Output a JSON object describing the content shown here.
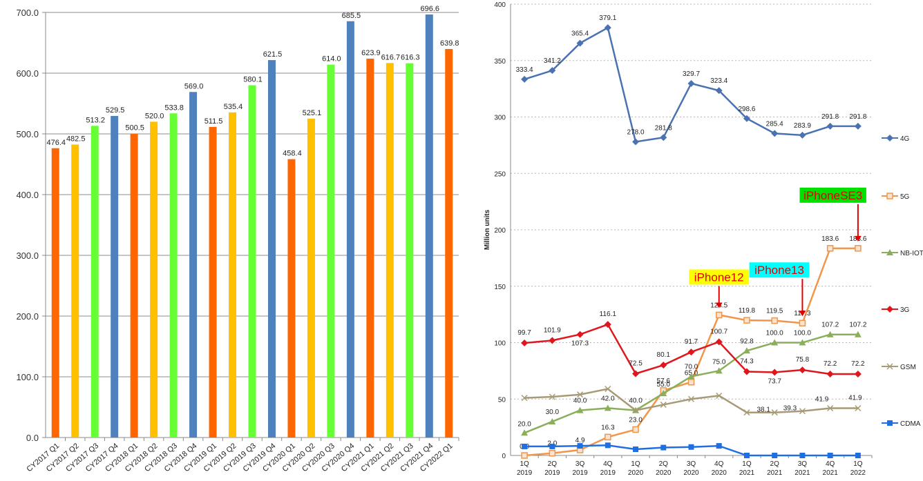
{
  "chart_data": [
    {
      "type": "bar",
      "categories": [
        "CY2017 Q1",
        "CY2017 Q2",
        "CY2017 Q3",
        "CY2017 Q4",
        "CY2018 Q1",
        "CY2018 Q2",
        "CY2018 Q3",
        "CY2018 Q4",
        "CY2019 Q1",
        "CY2019 Q2",
        "CY2019 Q3",
        "CY2019 Q4",
        "CY2020 Q1",
        "CY2020 Q2",
        "CY2020 Q3",
        "CY2020 Q4",
        "CY2021 Q1",
        "CY2021 Q2",
        "CY2021 Q3",
        "CY2021 Q4",
        "CY2022 Q1"
      ],
      "values": [
        476.4,
        482.5,
        513.2,
        529.5,
        500.5,
        520.0,
        533.8,
        569.0,
        511.5,
        535.4,
        580.1,
        621.5,
        458.4,
        525.1,
        614.0,
        685.5,
        623.9,
        616.7,
        616.3,
        696.6,
        639.8
      ],
      "value_labels": [
        "476.4",
        "482.5",
        "513.2",
        "529.5",
        "500.5",
        "520.0",
        "533.8",
        "569.0",
        "511.5",
        "535.4",
        "580.1",
        "621.5",
        "458.4",
        "525.1",
        "614.0",
        "685.5",
        "623.9",
        "616.7",
        "616.3",
        "696.6",
        "639.8"
      ],
      "bar_colors": [
        "#ff6600",
        "#ffc000",
        "#66ff33",
        "#4f81bd",
        "#ff6600",
        "#ffc000",
        "#66ff33",
        "#4f81bd",
        "#ff6600",
        "#ffc000",
        "#66ff33",
        "#4f81bd",
        "#ff6600",
        "#ffc000",
        "#66ff33",
        "#4f81bd",
        "#ff6600",
        "#ffc000",
        "#66ff33",
        "#4f81bd",
        "#ff6600"
      ],
      "ylim": [
        0,
        700
      ],
      "yticks": [
        "0.0",
        "100.0",
        "200.0",
        "300.0",
        "400.0",
        "500.0",
        "600.0",
        "700.0"
      ],
      "grid": true
    },
    {
      "type": "line",
      "x": [
        "1Q 2019",
        "2Q 2019",
        "3Q 2019",
        "4Q 2019",
        "1Q 2020",
        "2Q 2020",
        "3Q 2020",
        "4Q 2020",
        "1Q 2021",
        "2Q 2021",
        "3Q 2021",
        "4Q 2021",
        "1Q 2022"
      ],
      "x_tick_lines": [
        [
          "1Q",
          "2019"
        ],
        [
          "2Q",
          "2019"
        ],
        [
          "3Q",
          "2019"
        ],
        [
          "4Q",
          "2019"
        ],
        [
          "1Q",
          "2020"
        ],
        [
          "2Q",
          "2020"
        ],
        [
          "3Q",
          "2020"
        ],
        [
          "4Q",
          "2020"
        ],
        [
          "1Q",
          "2021"
        ],
        [
          "2Q",
          "2021"
        ],
        [
          "3Q",
          "2021"
        ],
        [
          "4Q",
          "2021"
        ],
        [
          "1Q",
          "2022"
        ]
      ],
      "ylabel": "Million units",
      "ylim": [
        0,
        400
      ],
      "yticks": [
        "0",
        "50",
        "100",
        "150",
        "200",
        "250",
        "300",
        "350",
        "400"
      ],
      "grid": true,
      "legend_position": "right",
      "series": [
        {
          "name": "4G",
          "color": "#4a72b0",
          "marker": "diamond",
          "values": [
            333.4,
            341.2,
            365.4,
            379.1,
            278.0,
            281.8,
            329.7,
            323.4,
            298.6,
            285.4,
            283.9,
            291.8,
            291.8
          ],
          "labels": [
            "333.4",
            "341.2",
            "365.4",
            "379.1",
            "278.0",
            "281.8",
            "329.7",
            "323.4",
            "298.6",
            "285.4",
            "283.9",
            "291.8",
            "291.8"
          ]
        },
        {
          "name": "5G",
          "color": "#f0964a",
          "marker": "square-open",
          "values": [
            0.0,
            2.0,
            4.9,
            16.3,
            23.0,
            57.6,
            65.0,
            124.5,
            119.8,
            119.5,
            117.3,
            183.6,
            183.6
          ],
          "labels": [
            "0.0",
            "2.0",
            "4.9",
            "16.3",
            "23.0",
            "57.6",
            "65.0",
            "124.5",
            "119.8",
            "119.5",
            "117.3",
            "183.6",
            "183.6"
          ]
        },
        {
          "name": "NB-IOT",
          "color": "#8aae5a",
          "marker": "triangle",
          "values": [
            20.0,
            30.0,
            40.0,
            42.0,
            40.0,
            55.0,
            70.0,
            75.0,
            92.8,
            100.0,
            100.0,
            107.2,
            107.2
          ],
          "labels": [
            "20.0",
            "30.0",
            "40.0",
            "42.0",
            "40.0",
            "55.0",
            "70.0",
            "75.0",
            "92.8",
            "100.0",
            "100.0",
            "107.2",
            "107.2"
          ]
        },
        {
          "name": "3G",
          "color": "#e0161e",
          "marker": "diamond",
          "values": [
            99.7,
            101.9,
            107.3,
            116.1,
            72.5,
            80.1,
            91.7,
            100.7,
            74.3,
            73.7,
            75.8,
            72.2,
            72.2
          ],
          "labels": [
            "99.7",
            "101.9",
            "107.3",
            "116.1",
            "72.5",
            "80.1",
            "91.7",
            "100.7",
            "74.3",
            "73.7",
            "75.8",
            "72.2",
            "72.2"
          ]
        },
        {
          "name": "GSM",
          "color": "#a89a76",
          "marker": "x",
          "values": [
            51.0,
            52.0,
            54.0,
            59.0,
            40.0,
            45.0,
            50.0,
            53.0,
            38.1,
            38.1,
            39.3,
            41.9,
            41.9
          ],
          "labels": [
            "",
            "",
            "",
            "",
            "",
            "",
            "",
            "",
            "",
            "38.1",
            "39.3",
            "41.9",
            "41.9"
          ]
        },
        {
          "name": "CDMA",
          "color": "#1f6fe0",
          "marker": "square",
          "values": [
            8.0,
            8.0,
            8.5,
            9.0,
            5.5,
            7.0,
            7.5,
            8.5,
            0.0,
            0.0,
            0.0,
            0.0,
            0.0
          ],
          "labels": [
            "",
            "",
            "",
            "",
            "",
            "",
            "",
            "",
            "",
            "",
            "",
            "",
            ""
          ]
        }
      ],
      "annotations": [
        {
          "text": "iPhone12",
          "bg": "#ffff00",
          "target_index": 7,
          "target_value": 124.5
        },
        {
          "text": "iPhone13",
          "bg": "#00ffff",
          "target_index": 10,
          "target_value": 117.3
        },
        {
          "text": "iPhoneSE3",
          "bg": "#00e000",
          "target_index": 12,
          "target_value": 183.6
        }
      ]
    }
  ]
}
